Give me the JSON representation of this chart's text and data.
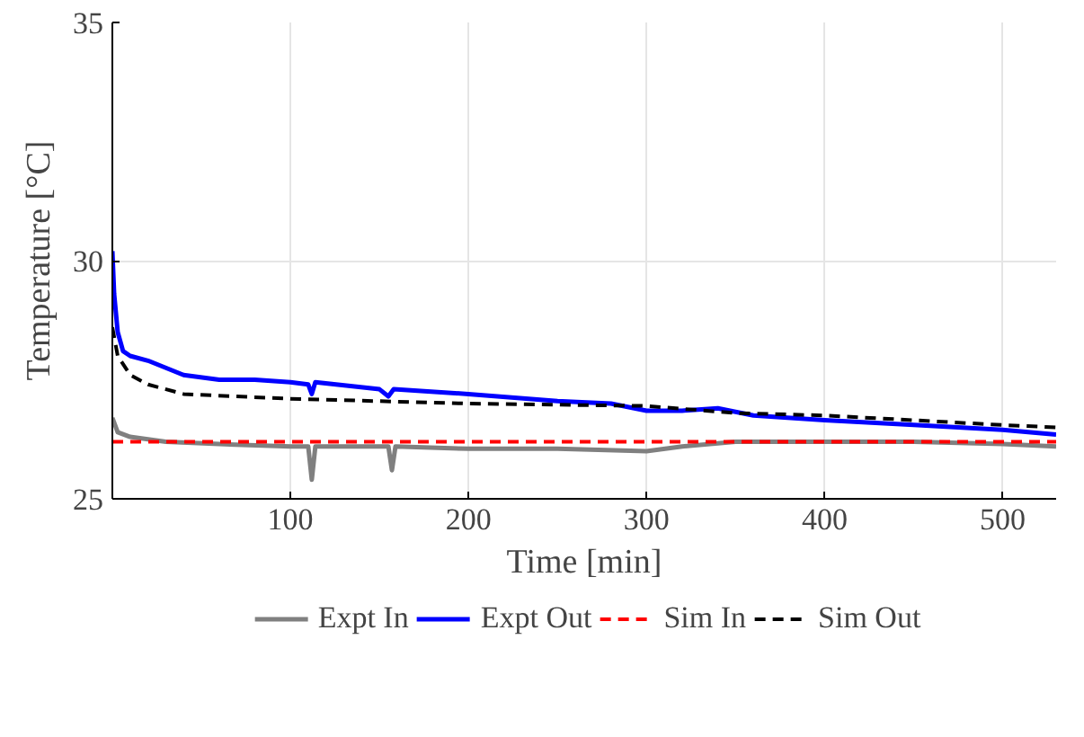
{
  "chart_data": {
    "type": "line",
    "xlabel": "Time [min]",
    "ylabel": "Temperature [°C]",
    "xlim": [
      0,
      530
    ],
    "xticks": [
      100,
      200,
      300,
      400,
      500
    ],
    "ylim": [
      25,
      35
    ],
    "yticks": [
      25,
      30,
      35
    ],
    "grid": true,
    "legend": "bottom",
    "marker": "none",
    "series": [
      {
        "name": "Expt In",
        "color": "#808080",
        "line_style": "solid",
        "x": [
          0,
          3,
          10,
          30,
          60,
          100,
          110,
          112,
          114,
          155,
          157,
          159,
          200,
          250,
          300,
          320,
          350,
          400,
          450,
          500,
          530
        ],
        "values": [
          26.7,
          26.4,
          26.3,
          26.2,
          26.15,
          26.1,
          26.1,
          25.4,
          26.1,
          26.1,
          25.6,
          26.1,
          26.05,
          26.05,
          26.0,
          26.1,
          26.2,
          26.2,
          26.2,
          26.15,
          26.1
        ]
      },
      {
        "name": "Expt Out",
        "color": "#0000ff",
        "line_style": "solid",
        "x": [
          0,
          1,
          3,
          6,
          10,
          20,
          40,
          60,
          80,
          100,
          110,
          112,
          114,
          150,
          155,
          158,
          200,
          250,
          280,
          300,
          320,
          340,
          360,
          400,
          450,
          500,
          530
        ],
        "values": [
          30.2,
          29.3,
          28.5,
          28.1,
          28.0,
          27.9,
          27.6,
          27.5,
          27.5,
          27.45,
          27.4,
          27.2,
          27.45,
          27.3,
          27.15,
          27.3,
          27.2,
          27.05,
          27.0,
          26.85,
          26.85,
          26.9,
          26.75,
          26.65,
          26.55,
          26.45,
          26.35
        ]
      },
      {
        "name": "Sim In",
        "color": "#ff0000",
        "line_style": "dashed",
        "x": [
          0,
          530
        ],
        "values": [
          26.2,
          26.2
        ]
      },
      {
        "name": "Sim Out",
        "color": "#000000",
        "line_style": "dashed",
        "x": [
          0,
          3,
          10,
          20,
          40,
          100,
          200,
          300,
          350,
          400,
          450,
          500,
          530
        ],
        "values": [
          28.6,
          28.0,
          27.6,
          27.4,
          27.2,
          27.1,
          27.0,
          26.95,
          26.8,
          26.75,
          26.65,
          26.55,
          26.5
        ]
      }
    ]
  }
}
